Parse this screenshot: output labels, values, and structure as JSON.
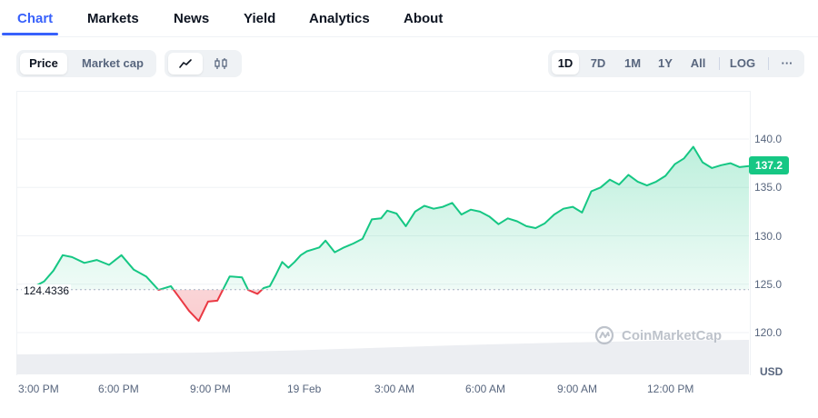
{
  "tabs": [
    {
      "label": "Chart",
      "active": true
    },
    {
      "label": "Markets"
    },
    {
      "label": "News"
    },
    {
      "label": "Yield"
    },
    {
      "label": "Analytics"
    },
    {
      "label": "About"
    }
  ],
  "toolbar": {
    "data_type_options": [
      "Price",
      "Market cap"
    ],
    "data_type_selected": "Price",
    "chart_style_selected": "line",
    "chart_style_icons": [
      "line-chart-icon",
      "candlestick-icon"
    ],
    "range_options": [
      "1D",
      "7D",
      "1M",
      "1Y",
      "All"
    ],
    "range_selected": "1D",
    "log_label": "LOG",
    "more_label": "···"
  },
  "watermark": "CoinMarketCap",
  "colors": {
    "up": "#16c784",
    "down": "#ea3943",
    "accent": "#3861fb"
  },
  "chart_data": {
    "type": "line",
    "currency_label": "USD",
    "current_price": "137.2",
    "baseline_label": "124.4336",
    "baseline_value": 124.4336,
    "ylim": [
      115,
      145
    ],
    "y_ticks": [
      "140.0",
      "135.0",
      "130.0",
      "125.0",
      "120.0"
    ],
    "x_ticks": [
      "3:00 PM",
      "6:00 PM",
      "9:00 PM",
      "19 Feb",
      "3:00 AM",
      "6:00 AM",
      "9:00 AM",
      "12:00 PM"
    ],
    "x_range_hours": [
      0,
      23.7
    ],
    "series": [
      {
        "x": [
          0.5,
          0.9,
          1.2,
          1.5,
          1.8,
          2.2,
          2.6,
          3.0,
          3.4,
          3.8,
          4.2,
          4.6,
          5.0,
          5.3,
          5.6,
          5.9,
          6.2,
          6.5,
          6.9,
          7.3,
          7.5,
          7.8,
          8.0,
          8.2,
          8.4,
          8.6,
          8.8,
          9.0,
          9.2,
          9.4,
          9.6,
          9.8,
          10.0,
          10.3,
          10.6,
          10.9,
          11.2,
          11.5,
          11.8,
          12.0,
          12.3,
          12.6,
          12.9,
          13.2,
          13.5,
          13.8,
          14.1,
          14.4,
          14.7,
          15.0,
          15.3,
          15.6,
          15.9,
          16.2,
          16.5,
          16.8,
          17.1,
          17.4,
          17.7,
          18.0,
          18.3,
          18.6,
          18.9,
          19.2,
          19.5,
          19.8,
          20.1,
          20.4,
          20.7,
          21.0,
          21.3,
          21.6,
          21.9,
          22.2,
          22.5,
          22.8,
          23.1,
          23.4,
          23.7
        ],
        "y": [
          124.6,
          125.3,
          126.4,
          128.0,
          127.8,
          127.2,
          127.5,
          127.0,
          128.0,
          126.5,
          125.8,
          124.4,
          124.8,
          123.5,
          122.2,
          121.2,
          123.2,
          123.3,
          125.8,
          125.7,
          124.4,
          124.0,
          124.6,
          124.8,
          126.0,
          127.3,
          126.7,
          127.3,
          128.0,
          128.4,
          128.6,
          128.8,
          129.5,
          128.3,
          128.8,
          129.2,
          129.7,
          131.7,
          131.8,
          132.6,
          132.3,
          131.0,
          132.5,
          133.1,
          132.8,
          133.0,
          133.4,
          132.2,
          132.7,
          132.5,
          132.0,
          131.2,
          131.8,
          131.5,
          131.0,
          130.8,
          131.3,
          132.2,
          132.8,
          133.0,
          132.4,
          134.6,
          135.0,
          135.8,
          135.3,
          136.3,
          135.6,
          135.2,
          135.6,
          136.2,
          137.4,
          138.0,
          139.2,
          137.6,
          137.0,
          137.3,
          137.5,
          137.1,
          137.2
        ]
      }
    ],
    "volume": {
      "x": [
        0.0,
        3.0,
        6.0,
        9.0,
        12.0,
        15.0,
        18.0,
        21.0,
        23.7
      ],
      "y": [
        0.55,
        0.57,
        0.6,
        0.66,
        0.74,
        0.82,
        0.88,
        0.93,
        0.95
      ]
    }
  }
}
